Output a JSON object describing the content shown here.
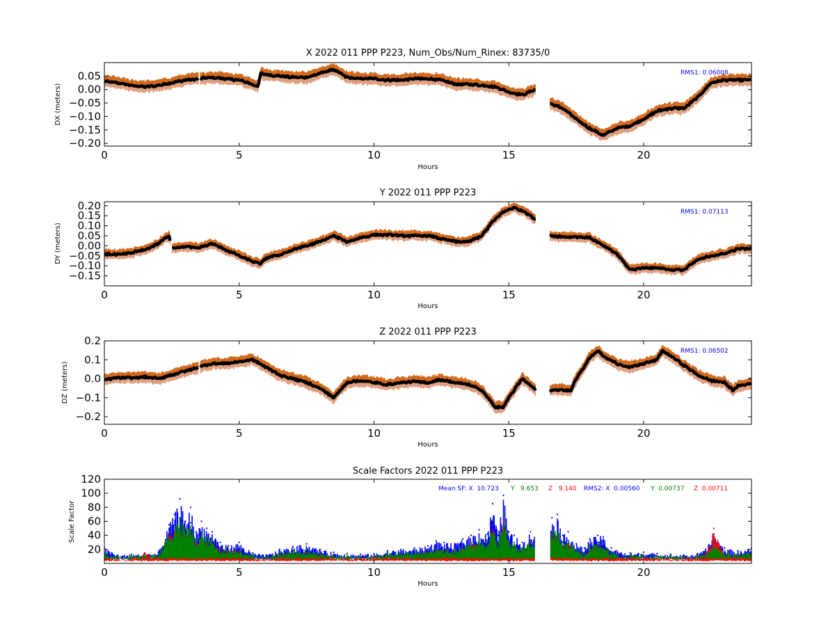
{
  "figure": {
    "panels": [
      {
        "id": "dx",
        "title": "X 2022 011 PPP  P223, Num_Obs/Num_Rinex: 83735/0",
        "xlabel": "Hours",
        "ylabel": "DX (meters)",
        "annotation": [
          {
            "text": "RMS1:  0.06008",
            "color": "#0000ff"
          }
        ]
      },
      {
        "id": "dy",
        "title": "Y 2022 011 PPP  P223",
        "xlabel": "Hours",
        "ylabel": "DY (meters)",
        "annotation": [
          {
            "text": "RMS1:  0.07113",
            "color": "#0000ff"
          }
        ]
      },
      {
        "id": "dz",
        "title": "Z 2022 011 PPP  P223",
        "xlabel": "Hours",
        "ylabel": "DZ (meters)",
        "annotation": [
          {
            "text": "RMS1:  0.06502",
            "color": "#0000ff"
          }
        ]
      },
      {
        "id": "sf",
        "title": "Scale Factors 2022 011 PPP  P223",
        "xlabel": "Hours",
        "ylabel": "Scale Factor",
        "annotation": [
          {
            "text": "Mean SF: X  10.723",
            "color": "#0000ff"
          },
          {
            "text": "Y   9.653",
            "color": "#008000"
          },
          {
            "text": "Z   9.140",
            "color": "#ff0000"
          },
          {
            "text": "RMS2: X  0.00560",
            "color": "#0000ff"
          },
          {
            "text": "Y  0.00737",
            "color": "#008000"
          },
          {
            "text": "Z  0.00711",
            "color": "#ff0000"
          }
        ]
      }
    ]
  },
  "chart_data": [
    {
      "type": "line",
      "title": "X 2022 011 PPP  P223, Num_Obs/Num_Rinex: 83735/0",
      "xlabel": "Hours",
      "ylabel": "DX (meters)",
      "xlim": [
        0,
        24
      ],
      "ylim": [
        -0.21,
        0.1
      ],
      "xticks": [
        0,
        5,
        10,
        15,
        20
      ],
      "yticks": [
        -0.2,
        -0.15,
        -0.1,
        -0.05,
        0.0,
        0.05
      ],
      "ytick_labels": [
        "−0.20",
        "−0.15",
        "−0.10",
        "−0.05",
        "0.00",
        "0.05"
      ],
      "grid": false,
      "gaps": [
        [
          3.5,
          3.55
        ],
        [
          16.0,
          16.5
        ]
      ],
      "series": [
        {
          "role": "uncertainty band",
          "color": "#d2691e",
          "lower_color": "#e0a080",
          "half_width": 0.018
        },
        {
          "role": "estimate",
          "color": "#000000",
          "x": [
            0,
            0.5,
            1,
            1.5,
            2,
            2.5,
            3,
            3.5,
            4,
            4.5,
            5,
            5.5,
            5.7,
            5.8,
            6,
            6.5,
            7,
            7.5,
            8,
            8.5,
            9,
            9.5,
            10,
            10.5,
            11,
            11.5,
            12,
            12.5,
            13,
            13.5,
            14,
            14.5,
            15,
            15.5,
            16,
            16.5,
            17,
            17.5,
            18,
            18.5,
            19,
            19.5,
            20,
            20.5,
            21,
            21.5,
            22,
            22.5,
            23,
            23.5,
            24
          ],
          "y": [
            0.03,
            0.025,
            0.015,
            0.01,
            0.015,
            0.025,
            0.035,
            0.04,
            0.045,
            0.04,
            0.035,
            0.02,
            0.01,
            0.06,
            0.055,
            0.05,
            0.045,
            0.045,
            0.06,
            0.075,
            0.045,
            0.04,
            0.04,
            0.035,
            0.035,
            0.04,
            0.04,
            0.035,
            0.02,
            0.02,
            0.015,
            0.01,
            -0.01,
            -0.02,
            0.0,
            -0.05,
            -0.07,
            -0.11,
            -0.145,
            -0.17,
            -0.145,
            -0.135,
            -0.11,
            -0.08,
            -0.07,
            -0.07,
            -0.03,
            0.025,
            0.035,
            0.035,
            0.035
          ]
        }
      ],
      "annotation": "RMS1:  0.06008"
    },
    {
      "type": "line",
      "title": "Y 2022 011 PPP  P223",
      "xlabel": "Hours",
      "ylabel": "DY (meters)",
      "xlim": [
        0,
        24
      ],
      "ylim": [
        -0.2,
        0.22
      ],
      "xticks": [
        0,
        5,
        10,
        15,
        20
      ],
      "yticks": [
        -0.15,
        -0.1,
        -0.05,
        0.0,
        0.05,
        0.1,
        0.15,
        0.2
      ],
      "ytick_labels": [
        "−0.15",
        "−0.10",
        "−0.05",
        "0.00",
        "0.05",
        "0.10",
        "0.15",
        "0.20"
      ],
      "grid": false,
      "gaps": [
        [
          2.45,
          2.5
        ],
        [
          16.0,
          16.5
        ]
      ],
      "series": [
        {
          "role": "uncertainty band",
          "color": "#d2691e",
          "lower_color": "#e0a080",
          "half_width": 0.02
        },
        {
          "role": "estimate",
          "color": "#000000",
          "x": [
            0,
            0.5,
            1,
            1.5,
            2,
            2.4,
            2.5,
            3,
            3.5,
            4,
            4.5,
            5,
            5.5,
            5.8,
            6,
            6.5,
            7,
            7.5,
            8,
            8.5,
            9,
            9.5,
            10,
            10.5,
            11,
            11.5,
            12,
            12.5,
            13,
            13.5,
            14,
            14.4,
            14.8,
            15.2,
            15.6,
            16,
            16.5,
            17,
            17.5,
            18,
            18.5,
            19,
            19.5,
            20,
            20.5,
            21,
            21.5,
            22,
            22.5,
            23,
            23.5,
            24
          ],
          "y": [
            -0.04,
            -0.045,
            -0.035,
            -0.02,
            0.01,
            0.05,
            -0.01,
            -0.005,
            -0.01,
            0.01,
            -0.02,
            -0.05,
            -0.08,
            -0.09,
            -0.06,
            -0.045,
            -0.02,
            0.0,
            0.02,
            0.05,
            0.02,
            0.04,
            0.055,
            0.055,
            0.05,
            0.05,
            0.05,
            0.035,
            0.02,
            0.02,
            0.05,
            0.12,
            0.17,
            0.19,
            0.17,
            0.13,
            0.05,
            0.045,
            0.045,
            0.04,
            0.0,
            -0.04,
            -0.12,
            -0.11,
            -0.11,
            -0.12,
            -0.12,
            -0.07,
            -0.05,
            -0.04,
            -0.015,
            -0.015
          ]
        }
      ],
      "annotation": "RMS1:  0.07113"
    },
    {
      "type": "line",
      "title": "Z 2022 011 PPP  P223",
      "xlabel": "Hours",
      "ylabel": "DZ (meters)",
      "xlim": [
        0,
        24
      ],
      "ylim": [
        -0.24,
        0.2
      ],
      "xticks": [
        0,
        5,
        10,
        15,
        20
      ],
      "yticks": [
        -0.2,
        -0.1,
        0.0,
        0.1,
        0.2
      ],
      "ytick_labels": [
        "−0.2",
        "−0.1",
        "0.0",
        "0.1",
        "0.2"
      ],
      "grid": false,
      "gaps": [
        [
          3.5,
          3.55
        ],
        [
          16.0,
          16.5
        ]
      ],
      "series": [
        {
          "role": "uncertainty band",
          "color": "#d2691e",
          "lower_color": "#e0a080",
          "half_width": 0.025
        },
        {
          "role": "estimate",
          "color": "#000000",
          "x": [
            0,
            0.5,
            1,
            1.5,
            2,
            2.5,
            3,
            3.5,
            4,
            4.5,
            5,
            5.5,
            6,
            6.5,
            7,
            7.5,
            8,
            8.5,
            9,
            9.5,
            10,
            10.5,
            11,
            11.5,
            12,
            12.5,
            13,
            13.5,
            14,
            14.5,
            14.8,
            15,
            15.5,
            16,
            16.5,
            17,
            17.3,
            17.5,
            18,
            18.3,
            18.5,
            19,
            19.5,
            20,
            20.5,
            20.7,
            21,
            21.5,
            22,
            22.5,
            23,
            23.3,
            23.5,
            24
          ],
          "y": [
            -0.005,
            0.005,
            0.005,
            0.01,
            0.0,
            0.02,
            0.04,
            0.06,
            0.08,
            0.08,
            0.09,
            0.1,
            0.06,
            0.02,
            0.0,
            -0.02,
            -0.05,
            -0.1,
            -0.02,
            -0.01,
            -0.02,
            -0.03,
            -0.02,
            -0.015,
            -0.02,
            -0.005,
            -0.02,
            -0.03,
            -0.06,
            -0.15,
            -0.15,
            -0.1,
            0.0,
            -0.06,
            -0.06,
            -0.06,
            -0.06,
            0.0,
            0.11,
            0.15,
            0.12,
            0.08,
            0.06,
            0.08,
            0.1,
            0.15,
            0.12,
            0.07,
            0.02,
            -0.01,
            -0.02,
            -0.06,
            -0.04,
            -0.025
          ]
        }
      ],
      "annotation": "RMS1:  0.06502"
    },
    {
      "type": "scatter",
      "title": "Scale Factors 2022 011 PPP  P223",
      "xlabel": "Hours",
      "ylabel": "Scale Factor",
      "xlim": [
        0,
        24
      ],
      "ylim": [
        0,
        120
      ],
      "xticks": [
        0,
        5,
        10,
        15,
        20
      ],
      "yticks": [
        20,
        40,
        60,
        80,
        100,
        120
      ],
      "ytick_labels": [
        "20",
        "40",
        "60",
        "80",
        "100",
        "120"
      ],
      "grid": false,
      "gaps": [
        [
          15.95,
          16.55
        ]
      ],
      "series": [
        {
          "role": "X",
          "color": "#0000ff",
          "x": [
            0,
            0.5,
            1,
            1.5,
            2,
            2.4,
            2.6,
            2.8,
            3.0,
            3.2,
            3.4,
            3.6,
            3.8,
            4.0,
            4.3,
            4.6,
            5.0,
            5.5,
            6.0,
            6.5,
            7.0,
            7.5,
            8.0,
            8.5,
            9.0,
            9.5,
            10.0,
            10.5,
            11.0,
            11.5,
            12.0,
            12.3,
            12.6,
            13.0,
            13.3,
            13.6,
            13.9,
            14.2,
            14.4,
            14.6,
            14.8,
            15.0,
            15.2,
            15.5,
            15.8,
            16.0,
            16.6,
            16.8,
            17.0,
            17.2,
            17.5,
            17.8,
            18.0,
            18.3,
            18.5,
            18.8,
            19.0,
            19.5,
            20.0,
            20.5,
            21.0,
            21.5,
            22.0,
            22.3,
            22.6,
            23.0,
            23.5,
            24.0
          ],
          "y": [
            22,
            12,
            13,
            14,
            16,
            55,
            70,
            92,
            60,
            80,
            45,
            60,
            50,
            45,
            30,
            25,
            30,
            15,
            12,
            20,
            24,
            28,
            20,
            16,
            14,
            13,
            14,
            18,
            20,
            22,
            25,
            32,
            30,
            28,
            35,
            40,
            48,
            42,
            85,
            40,
            97,
            45,
            40,
            30,
            45,
            38,
            65,
            70,
            40,
            45,
            28,
            22,
            35,
            40,
            38,
            22,
            18,
            15,
            16,
            14,
            13,
            12,
            14,
            20,
            42,
            22,
            18,
            22
          ]
        },
        {
          "role": "Y",
          "color": "#008000",
          "x": [
            0,
            0.5,
            1,
            1.5,
            2,
            2.4,
            2.6,
            2.8,
            3.0,
            3.2,
            3.4,
            3.6,
            3.8,
            4.0,
            4.3,
            4.6,
            5.0,
            5.5,
            6.0,
            6.5,
            7.0,
            7.5,
            8.0,
            8.5,
            9.0,
            9.5,
            10.0,
            10.5,
            11.0,
            11.5,
            12.0,
            12.3,
            12.6,
            13.0,
            13.3,
            13.6,
            13.9,
            14.2,
            14.4,
            14.6,
            14.8,
            15.0,
            15.2,
            15.5,
            15.8,
            16.0,
            16.6,
            16.8,
            17.0,
            17.2,
            17.5,
            17.8,
            18.0,
            18.3,
            18.5,
            18.8,
            19.0,
            19.5,
            20.0,
            20.5,
            21.0,
            21.5,
            22.0,
            22.3,
            22.6,
            23.0,
            23.5,
            24.0
          ],
          "y": [
            16,
            10,
            11,
            12,
            13,
            45,
            55,
            65,
            50,
            58,
            35,
            45,
            38,
            33,
            22,
            20,
            22,
            12,
            10,
            16,
            18,
            20,
            15,
            12,
            11,
            10,
            11,
            14,
            16,
            17,
            18,
            22,
            22,
            20,
            25,
            30,
            35,
            30,
            62,
            30,
            70,
            35,
            30,
            22,
            33,
            30,
            45,
            50,
            30,
            33,
            20,
            16,
            25,
            30,
            28,
            16,
            14,
            12,
            12,
            11,
            10,
            10,
            11,
            15,
            32,
            16,
            14,
            16
          ]
        },
        {
          "role": "Z",
          "color": "#ff0000",
          "x": [
            0,
            0.5,
            1,
            1.5,
            2,
            2.4,
            2.6,
            2.8,
            3.0,
            3.2,
            3.4,
            3.6,
            3.8,
            4.0,
            4.3,
            4.6,
            5.0,
            5.5,
            6.0,
            6.5,
            7.0,
            7.5,
            8.0,
            8.5,
            9.0,
            9.5,
            10.0,
            10.5,
            11.0,
            11.5,
            12.0,
            12.3,
            12.6,
            13.0,
            13.3,
            13.6,
            13.9,
            14.2,
            14.4,
            14.6,
            14.8,
            15.0,
            15.2,
            15.5,
            15.8,
            16.0,
            16.6,
            16.8,
            17.0,
            17.2,
            17.5,
            17.8,
            18.0,
            18.3,
            18.5,
            18.8,
            19.0,
            19.5,
            20.0,
            20.5,
            21.0,
            21.5,
            22.0,
            22.3,
            22.6,
            23.0,
            23.5,
            24.0
          ],
          "y": [
            10,
            6,
            8,
            15,
            9,
            40,
            45,
            50,
            40,
            45,
            30,
            35,
            30,
            28,
            20,
            18,
            18,
            8,
            6,
            12,
            14,
            15,
            12,
            9,
            8,
            8,
            9,
            10,
            12,
            12,
            14,
            18,
            18,
            16,
            20,
            28,
            30,
            25,
            55,
            25,
            60,
            28,
            25,
            18,
            28,
            25,
            40,
            42,
            25,
            28,
            16,
            12,
            20,
            25,
            22,
            12,
            10,
            9,
            9,
            8,
            8,
            8,
            9,
            12,
            50,
            12,
            10,
            12
          ]
        }
      ],
      "annotation": "Mean SF: X  10.723   Y   9.653   Z   9.140   RMS2: X  0.00560   Y  0.00737   Z  0.00711"
    }
  ]
}
